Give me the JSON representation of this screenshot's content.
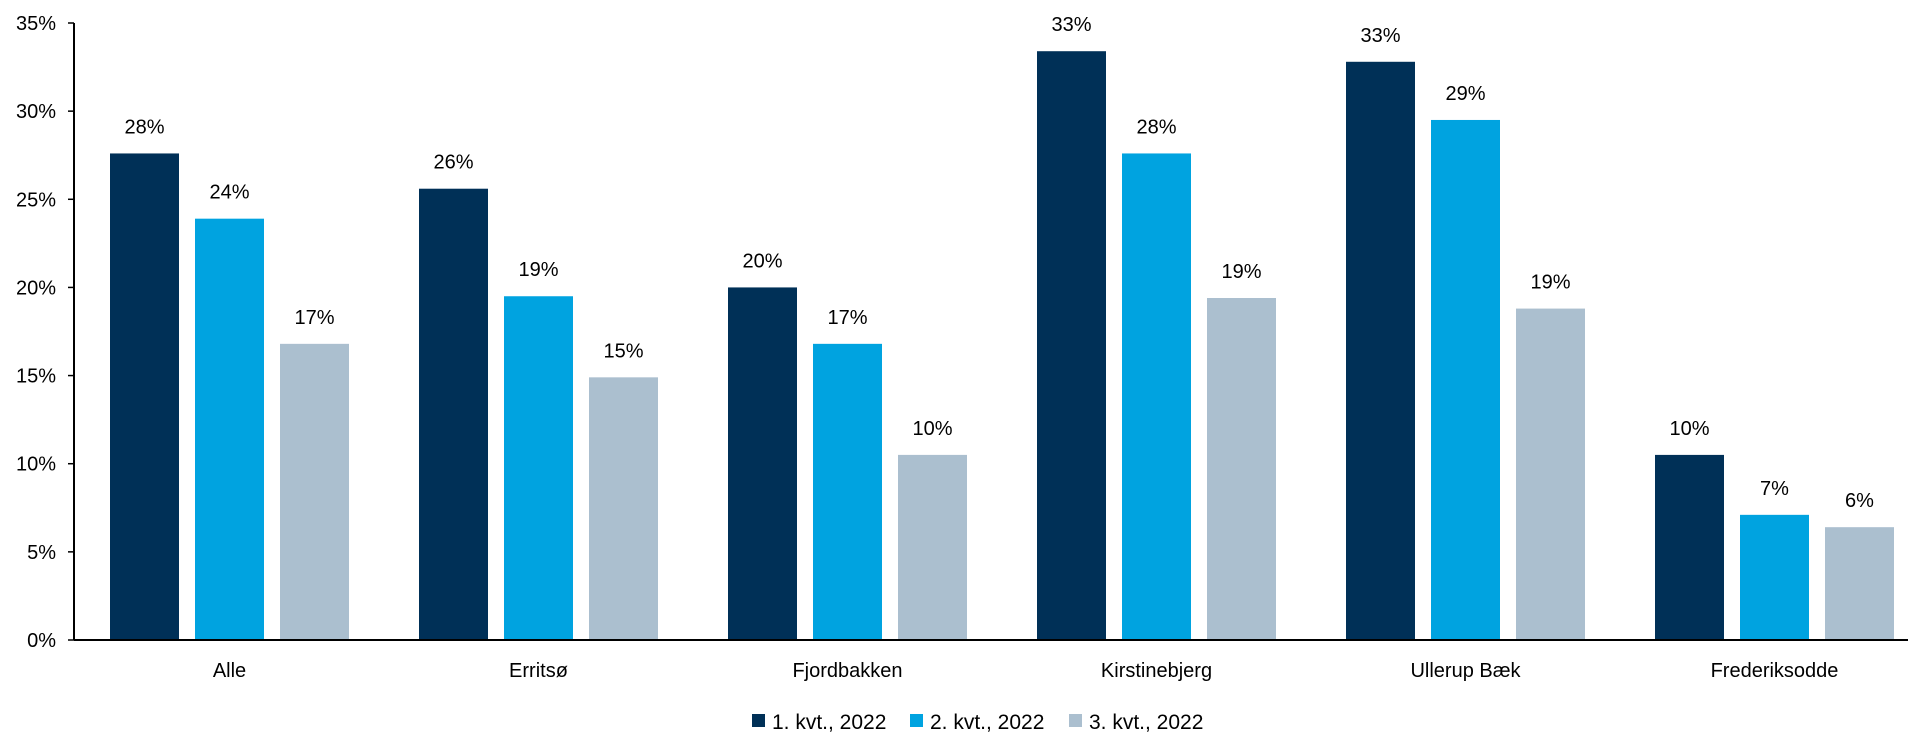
{
  "chart_data": {
    "type": "bar",
    "categories": [
      "Alle",
      "Erritsø",
      "Fjordbakken",
      "Kirstinebjerg",
      "Ullerup Bæk",
      "Frederiksodde"
    ],
    "series": [
      {
        "name": "1. kvt., 2022",
        "color": "#003057",
        "values": [
          28,
          26,
          20,
          33,
          33,
          10
        ],
        "plot_values": [
          27.6,
          25.6,
          20.0,
          33.4,
          32.8,
          10.5
        ]
      },
      {
        "name": "2. kvt., 2022",
        "color": "#00A3E0",
        "values": [
          24,
          19,
          17,
          28,
          29,
          7
        ],
        "plot_values": [
          23.9,
          19.5,
          16.8,
          27.6,
          29.5,
          7.1
        ]
      },
      {
        "name": "3. kvt., 2022",
        "color": "#ABBFCF",
        "values": [
          17,
          15,
          10,
          19,
          19,
          6
        ],
        "plot_values": [
          16.8,
          14.9,
          10.5,
          19.4,
          18.8,
          6.4
        ]
      }
    ],
    "value_suffix": "%",
    "ylim": [
      0,
      35
    ],
    "yticks": [
      0,
      5,
      10,
      15,
      20,
      25,
      30,
      35
    ],
    "ytick_labels": [
      "0%",
      "5%",
      "10%",
      "15%",
      "20%",
      "25%",
      "30%",
      "35%"
    ],
    "title": "",
    "xlabel": "",
    "ylabel": "",
    "grid": false,
    "legend_position": "bottom-center"
  }
}
